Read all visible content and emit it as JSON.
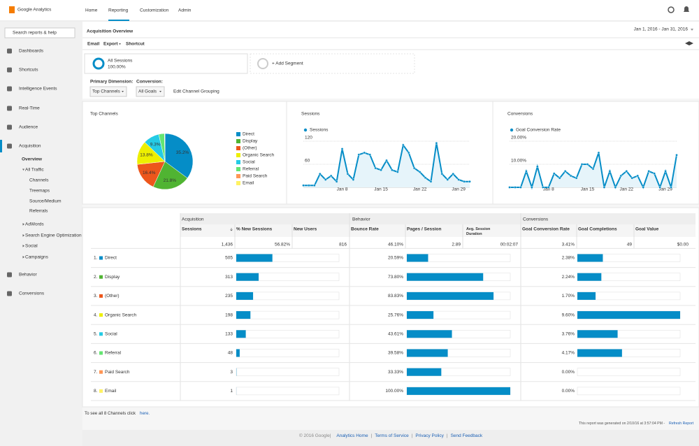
{
  "header": {
    "logo": "Google Analytics",
    "nav": [
      "Home",
      "Reporting",
      "Customization",
      "Admin"
    ],
    "active_nav": 1
  },
  "sidebar": {
    "search_placeholder": "Search reports & help",
    "items": [
      {
        "label": "Dashboards",
        "level": 0
      },
      {
        "label": "Shortcuts",
        "level": 0
      },
      {
        "label": "Intelligence Events",
        "level": 0
      },
      {
        "label": "Real-Time",
        "level": 0
      },
      {
        "label": "Audience",
        "level": 0
      },
      {
        "label": "Acquisition",
        "level": 0,
        "active": true
      },
      {
        "label": "Overview",
        "level": 1,
        "active": true
      },
      {
        "label": "All Traffic",
        "level": 1,
        "arrow": "open"
      },
      {
        "label": "Channels",
        "level": 2
      },
      {
        "label": "Treemaps",
        "level": 2
      },
      {
        "label": "Source/Medium",
        "level": 2
      },
      {
        "label": "Referrals",
        "level": 2
      },
      {
        "label": "AdWords",
        "level": 1,
        "arrow": "closed"
      },
      {
        "label": "Search Engine Optimization",
        "level": 1,
        "arrow": "closed"
      },
      {
        "label": "Social",
        "level": 1,
        "arrow": "closed"
      },
      {
        "label": "Campaigns",
        "level": 1,
        "arrow": "closed"
      },
      {
        "label": "Behavior",
        "level": 0
      },
      {
        "label": "Conversions",
        "level": 0
      }
    ]
  },
  "report": {
    "title": "Acquisition Overview",
    "date_range": "Jan 1, 2016 - Jan 31, 2016",
    "toolbar": [
      "Email",
      "Export",
      "Shortcut"
    ],
    "segment": {
      "name": "All Sessions",
      "percent": "100.00%",
      "add": "+ Add Segment"
    },
    "primary_dimension_label": "Primary Dimension:",
    "primary_dimension": "Top Channels",
    "conversion_label": "Conversion:",
    "conversion": "All Goals",
    "edit_link": "Edit Channel Grouping"
  },
  "chart_data": [
    {
      "type": "pie",
      "title": "Top Channels",
      "categories": [
        "Direct",
        "Display",
        "(Other)",
        "Organic Search",
        "Social",
        "Referral",
        "Paid Search",
        "Email"
      ],
      "values": [
        35.2,
        21.8,
        16.4,
        13.8,
        9.3,
        3.3,
        0.2,
        0.1
      ],
      "value_labels": [
        "35.2%",
        "21.8%",
        "16.4%",
        "13.8%",
        "9.3%",
        null,
        null,
        null
      ],
      "colors": [
        "#058dc7",
        "#50b432",
        "#ed561b",
        "#edef00",
        "#24cbe5",
        "#64e572",
        "#ff9655",
        "#fff263"
      ]
    },
    {
      "type": "line",
      "title": "Sessions",
      "categories": [
        null,
        null,
        null,
        null,
        null,
        null,
        null,
        "Jan 8",
        null,
        null,
        null,
        null,
        null,
        null,
        "Jan 15",
        null,
        null,
        null,
        null,
        null,
        null,
        "Jan 22",
        null,
        null,
        null,
        null,
        null,
        null,
        "Jan 29",
        null,
        null
      ],
      "series": [
        {
          "name": "Sessions",
          "color": "#058dc7",
          "values": [
            5,
            5,
            5,
            35,
            20,
            30,
            15,
            100,
            35,
            20,
            85,
            90,
            85,
            50,
            45,
            70,
            45,
            40,
            110,
            90,
            50,
            40,
            25,
            15,
            115,
            35,
            20,
            35,
            20,
            15,
            15
          ]
        }
      ],
      "ylim": [
        0,
        140
      ],
      "yticks": [
        60,
        120
      ]
    },
    {
      "type": "line",
      "title": "Conversions",
      "categories": [
        null,
        null,
        null,
        null,
        null,
        null,
        null,
        "Jan 8",
        null,
        null,
        null,
        null,
        null,
        null,
        "Jan 15",
        null,
        null,
        null,
        null,
        null,
        null,
        "Jan 22",
        null,
        null,
        null,
        null,
        null,
        null,
        "Jan 29",
        null,
        null
      ],
      "series": [
        {
          "name": "Goal Conversion Rate",
          "color": "#058dc7",
          "values": [
            0,
            0,
            0,
            7,
            0,
            9,
            0,
            0,
            6,
            4,
            7,
            5,
            4,
            10,
            10,
            8,
            15,
            0,
            7,
            0,
            5,
            7,
            4,
            5,
            0,
            7,
            6,
            0,
            7,
            0,
            14
          ]
        }
      ],
      "ylim": [
        0,
        25
      ],
      "yticks": [
        {
          "value": 10,
          "label": "10.00%"
        },
        {
          "value": 20,
          "label": "20.00%"
        }
      ]
    }
  ],
  "table": {
    "groups": [
      "Acquisition",
      "Behavior",
      "Conversions"
    ],
    "columns": [
      "Sessions",
      "% New Sessions",
      "New Users",
      "Bounce Rate",
      "Pages / Session",
      "Avg. Session Duration",
      "Goal Conversion Rate",
      "Goal Completions",
      "Goal Value"
    ],
    "totals": [
      {
        "value": 1436,
        "label": "1,436"
      },
      "56.82%",
      "816",
      "46.10%",
      "2.89",
      "00:02:07",
      "3.41%",
      "49",
      "$0.00"
    ],
    "rows": [
      {
        "rank": "1.",
        "name": "Direct",
        "color": "#058dc7",
        "sessions": 505,
        "bounce_rate": {
          "value": 20.59,
          "label": "20.59%"
        },
        "conversion_rate": {
          "value": 2.38,
          "label": "2.38%"
        }
      },
      {
        "rank": "2.",
        "name": "Display",
        "color": "#50b432",
        "sessions": 313,
        "bounce_rate": {
          "value": 73.8,
          "label": "73.80%"
        },
        "conversion_rate": {
          "value": 2.24,
          "label": "2.24%"
        }
      },
      {
        "rank": "3.",
        "name": "(Other)",
        "color": "#ed561b",
        "sessions": 235,
        "bounce_rate": {
          "value": 83.83,
          "label": "83.83%"
        },
        "conversion_rate": {
          "value": 1.7,
          "label": "1.70%"
        }
      },
      {
        "rank": "4.",
        "name": "Organic Search",
        "color": "#edef00",
        "sessions": 198,
        "bounce_rate": {
          "value": 25.76,
          "label": "25.76%"
        },
        "conversion_rate": {
          "value": 9.6,
          "label": "9.60%"
        }
      },
      {
        "rank": "5.",
        "name": "Social",
        "color": "#24cbe5",
        "sessions": 133,
        "bounce_rate": {
          "value": 43.61,
          "label": "43.61%"
        },
        "conversion_rate": {
          "value": 3.76,
          "label": "3.76%"
        }
      },
      {
        "rank": "6.",
        "name": "Referral",
        "color": "#64e572",
        "sessions": 48,
        "bounce_rate": {
          "value": 39.58,
          "label": "39.58%"
        },
        "conversion_rate": {
          "value": 4.17,
          "label": "4.17%"
        }
      },
      {
        "rank": "7.",
        "name": "Paid Search",
        "color": "#ff9655",
        "sessions": 3,
        "bounce_rate": {
          "value": 33.33,
          "label": "33.33%"
        },
        "conversion_rate": {
          "value": 0,
          "label": "0.00%"
        }
      },
      {
        "rank": "8.",
        "name": "Email",
        "color": "#fff263",
        "sessions": 1,
        "bounce_rate": {
          "value": 100,
          "label": "100.00%"
        },
        "conversion_rate": {
          "value": 0,
          "label": "0.00%"
        }
      }
    ],
    "see_all_text": "To see all 8 Channels click",
    "see_all_link": "here.",
    "generated_text": "This report was generated on 2/10/16 at 3:57:04 PM -",
    "refresh_link": "Refresh Report"
  },
  "footer": {
    "copyright": "© 2016 Google",
    "links": [
      "Analytics Home",
      "Terms of Service",
      "Privacy Policy",
      "Send Feedback"
    ]
  }
}
